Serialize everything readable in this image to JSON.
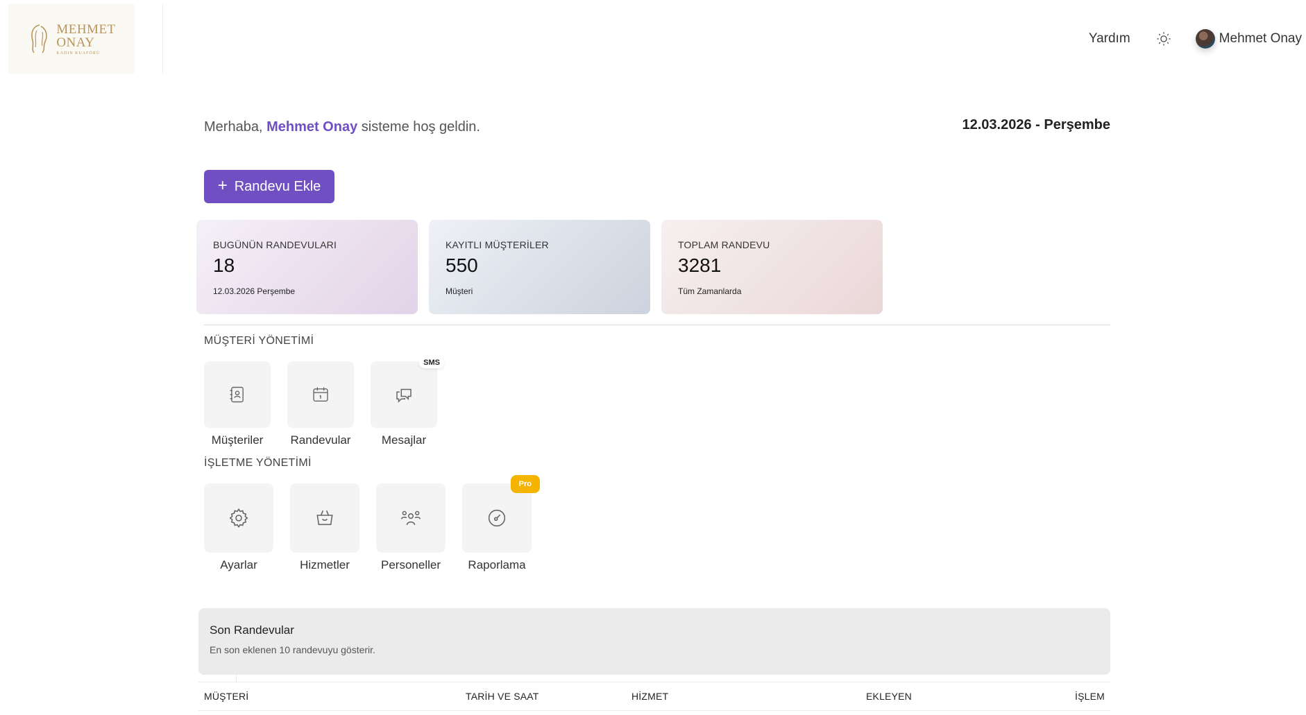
{
  "header": {
    "logo": {
      "line1": "MEHMET",
      "line2": "ONAY",
      "sub": "KADIN KUAFÖRÜ"
    },
    "help_label": "Yardım",
    "theme_icon": "sun-icon",
    "user_name": "Mehmet Onay"
  },
  "greeting": {
    "prefix": "Merhaba,",
    "name": "Mehmet Onay",
    "suffix": "sisteme hoş geldin."
  },
  "date_title": "12.03.2026 - Perşembe",
  "add_button": {
    "icon": "plus-icon",
    "label": "Randevu Ekle"
  },
  "stats": [
    {
      "label": "BUGÜNÜN RANDEVULARI",
      "value": "18",
      "sub": "12.03.2026 Perşembe"
    },
    {
      "label": "KAYITLI MÜŞTERİLER",
      "value": "550",
      "sub": "Müşteri"
    },
    {
      "label": "TOPLAM RANDEVU",
      "value": "3281",
      "sub": "Tüm Zamanlarda"
    }
  ],
  "customer_section": {
    "title": "MÜŞTERİ YÖNETİMİ",
    "items": [
      {
        "label": "Müşteriler",
        "icon": "contacts-book-icon"
      },
      {
        "label": "Randevular",
        "icon": "calendar-icon"
      },
      {
        "label": "Mesajlar",
        "icon": "chat-icon",
        "badge": "SMS"
      }
    ]
  },
  "business_section": {
    "title": "İŞLETME YÖNETİMİ",
    "items": [
      {
        "label": "Ayarlar",
        "icon": "gear-icon"
      },
      {
        "label": "Hizmetler",
        "icon": "basket-icon"
      },
      {
        "label": "Personeller",
        "icon": "users-icon"
      },
      {
        "label": "Raporlama",
        "icon": "gauge-icon",
        "badge": "Pro"
      }
    ]
  },
  "recent": {
    "title": "Son Randevular",
    "description": "En son eklenen 10 randevuyu gösterir.",
    "columns": [
      "MÜŞTERİ",
      "TARİH VE SAAT",
      "HİZMET",
      "EKLEYEN",
      "İŞLEM"
    ]
  },
  "colors": {
    "accent": "#6f4fc2",
    "pro_badge": "#f5b400",
    "logo_gold": "#b8955a"
  }
}
